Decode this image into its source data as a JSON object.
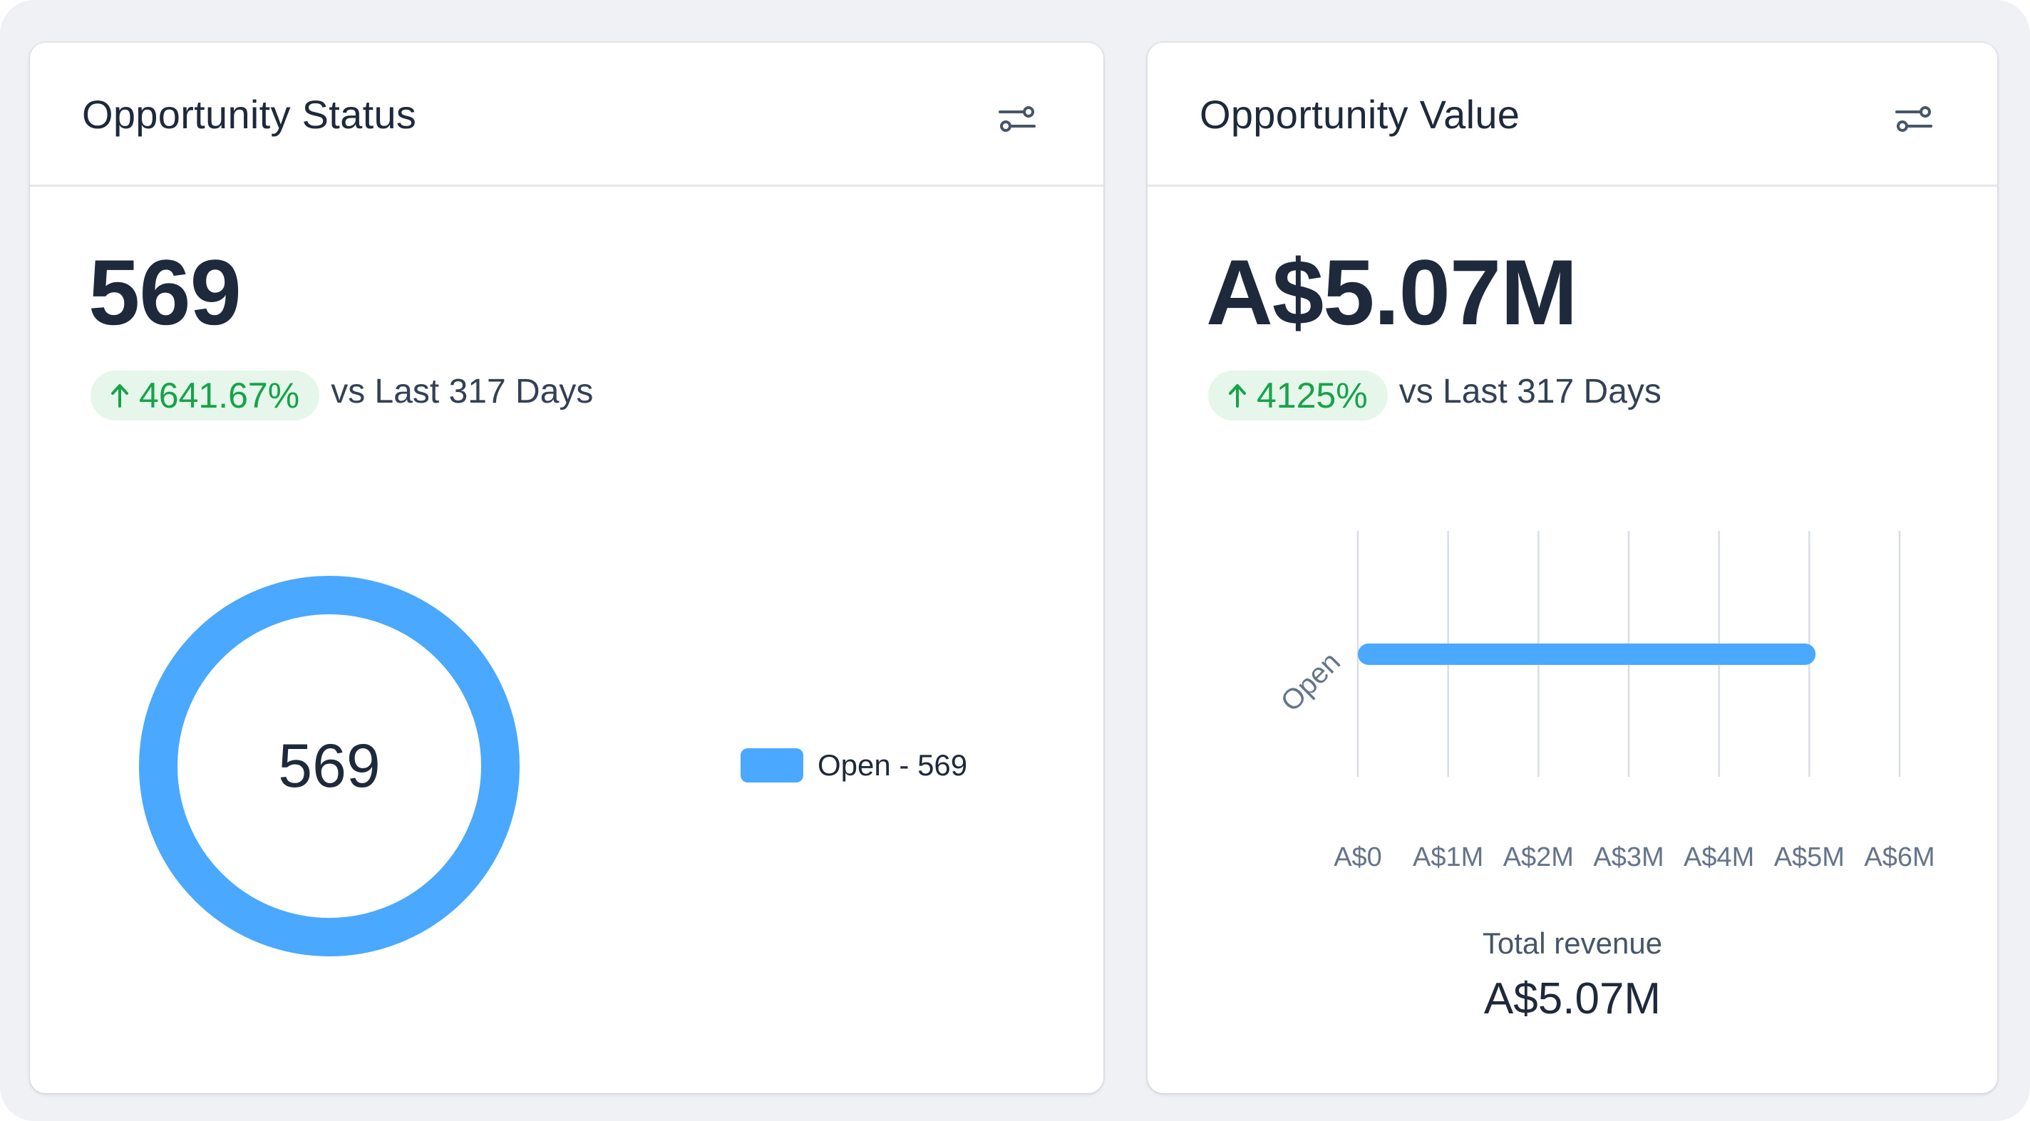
{
  "cards": {
    "status": {
      "title": "Opportunity Status",
      "settings_icon": "settings-sliders-icon",
      "value": "569",
      "change": "4641.67%",
      "change_direction": "up",
      "comparison": "vs Last 317 Days",
      "donut_center": "569",
      "legend": [
        {
          "label": "Open - 569",
          "color": "#4aa8ff"
        }
      ]
    },
    "value": {
      "title": "Opportunity Value",
      "settings_icon": "settings-sliders-icon",
      "value": "A$5.07M",
      "change": "4125%",
      "change_direction": "up",
      "comparison": "vs Last 317 Days",
      "total_label": "Total revenue",
      "total_value": "A$5.07M"
    }
  },
  "colors": {
    "accent": "#4aa8ff",
    "positive": "#16a34a",
    "positive_bg": "#e6f6ea"
  },
  "chart_data": [
    {
      "type": "pie",
      "variant": "donut",
      "categories": [
        "Open"
      ],
      "values": [
        569
      ],
      "center_label": "569",
      "legend_placement": "right"
    },
    {
      "type": "bar",
      "orientation": "horizontal",
      "categories": [
        "Open"
      ],
      "values": [
        5.07
      ],
      "value_unit": "A$ millions",
      "xlim": [
        0,
        6
      ],
      "xticks": [
        0,
        1,
        2,
        3,
        4,
        5,
        6
      ],
      "xtick_labels": [
        "A$0",
        "A$1M",
        "A$2M",
        "A$3M",
        "A$4M",
        "A$5M",
        "A$6M"
      ],
      "grid": true
    }
  ]
}
